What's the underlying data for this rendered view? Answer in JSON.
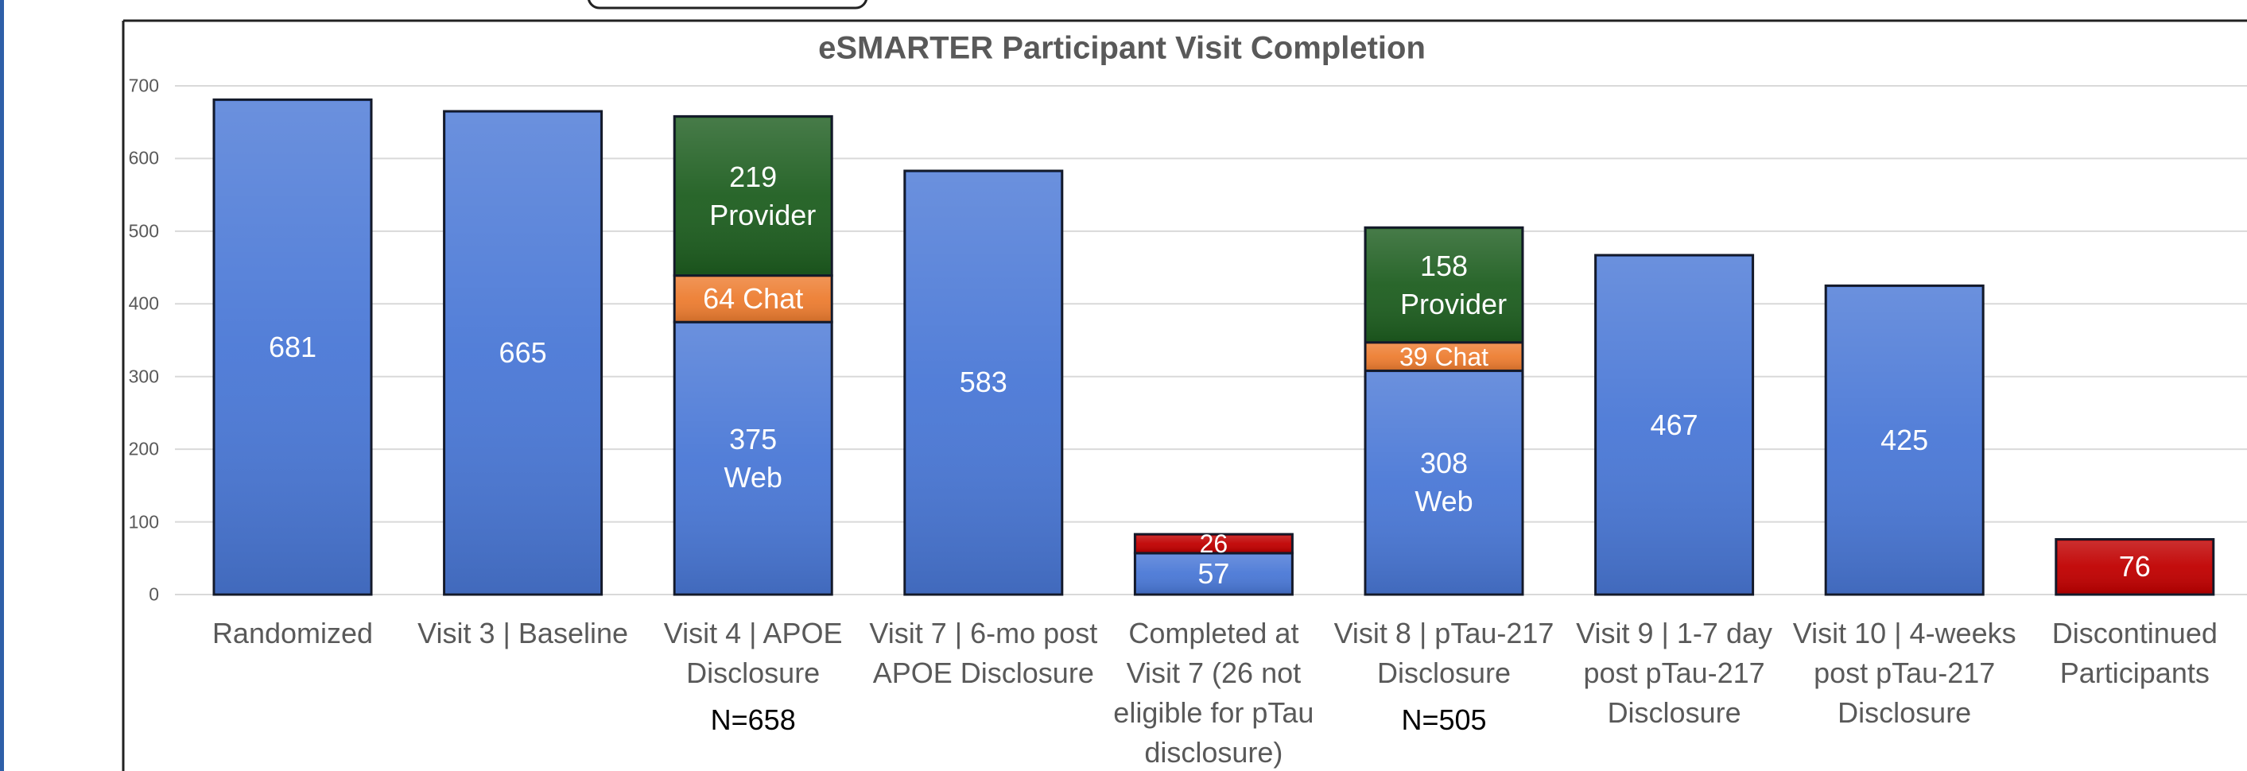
{
  "chart_data": {
    "type": "bar",
    "title": "eSMARTER Participant Visit Completion",
    "categories": [
      "Randomized",
      "Visit 3 | Baseline",
      "Visit 4 | APOE Disclosure",
      "Visit 7 | 6-mo post APOE Disclosure",
      "Completed at Visit 7 (26 not eligible for pTau disclosure)",
      "Visit 8 | pTau-217 Disclosure",
      "Visit 9 | 1-7 day post pTau-217 Disclosure",
      "Visit 10 | 4-weeks post pTau-217 Disclosure",
      "Discontinued Participants"
    ],
    "notes": [
      null,
      null,
      "N=658",
      null,
      null,
      "N=505",
      null,
      null,
      null
    ],
    "stacked": true,
    "series": [
      {
        "color": "#4a78d6",
        "values": [
          681,
          665,
          375,
          583,
          57,
          308,
          467,
          425,
          null
        ],
        "value_labels": [
          null,
          null,
          "375 Web",
          null,
          null,
          "308 Web",
          null,
          null,
          null
        ]
      },
      {
        "color": "#c00000",
        "values": [
          null,
          null,
          null,
          null,
          26,
          null,
          null,
          null,
          76
        ]
      },
      {
        "color": "#ed7d31",
        "values": [
          null,
          null,
          64,
          null,
          null,
          39,
          null,
          null,
          null
        ],
        "value_labels": [
          null,
          null,
          "64 Chat",
          null,
          null,
          "39 Chat",
          null,
          null,
          null
        ]
      },
      {
        "color": "#1e5e20",
        "values": [
          null,
          null,
          219,
          null,
          null,
          158,
          null,
          null,
          null
        ],
        "value_labels": [
          null,
          null,
          "219 Provider",
          null,
          null,
          "158 Provider",
          null,
          null,
          null
        ]
      }
    ],
    "ylim": [
      0,
      700
    ],
    "yticks": [
      0,
      100,
      200,
      300,
      400,
      500,
      600,
      700
    ],
    "grid": true
  }
}
